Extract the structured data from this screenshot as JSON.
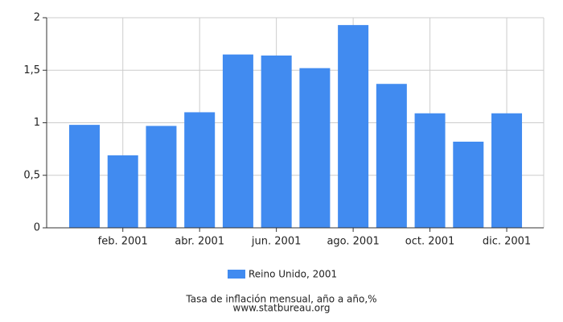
{
  "chart_data": {
    "type": "bar",
    "categories": [
      null,
      "feb. 2001",
      null,
      "abr. 2001",
      null,
      "jun. 2001",
      null,
      "ago. 2001",
      null,
      "oct. 2001",
      null,
      "dic. 2001"
    ],
    "series": [
      {
        "name": "Reino Unido, 2001",
        "color": "#418bf0",
        "values": [
          0.98,
          0.69,
          0.97,
          1.1,
          1.65,
          1.64,
          1.52,
          1.93,
          1.37,
          1.09,
          0.82,
          1.09
        ]
      }
    ],
    "ylim": [
      0,
      2
    ],
    "yticks": [
      0,
      {
        "value": 0.5,
        "label": "0,5"
      },
      1,
      {
        "value": 1.5,
        "label": "1,5"
      },
      2
    ],
    "grid": true,
    "caption": "Tasa de inflación mensual, año a año,%",
    "source": "www.statbureau.org"
  }
}
